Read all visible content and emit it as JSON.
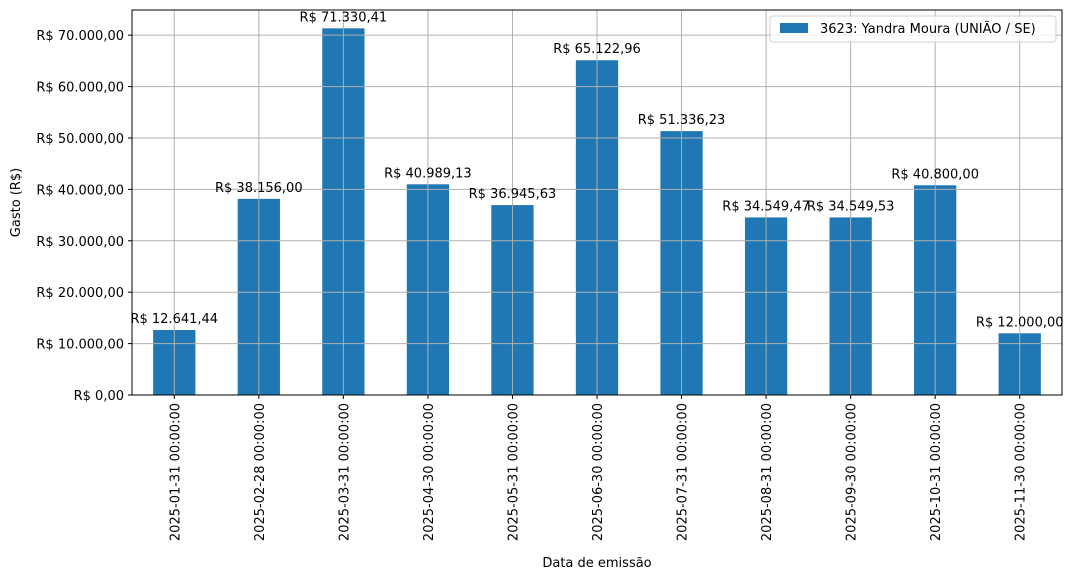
{
  "chart_data": {
    "type": "bar",
    "title": "",
    "xlabel": "Data de emissão",
    "ylabel": "Gasto (R$)",
    "ylim": [
      0,
      74896
    ],
    "grid": true,
    "legend_position": "upper right",
    "bar_color": "#1f77b4",
    "grid_color": "#b0b0b0",
    "categories": [
      "2025-01-31 00:00:00",
      "2025-02-28 00:00:00",
      "2025-03-31 00:00:00",
      "2025-04-30 00:00:00",
      "2025-05-31 00:00:00",
      "2025-06-30 00:00:00",
      "2025-07-31 00:00:00",
      "2025-08-31 00:00:00",
      "2025-09-30 00:00:00",
      "2025-10-31 00:00:00",
      "2025-11-30 00:00:00"
    ],
    "series": [
      {
        "name": "3623: Yandra Moura (UNIÃO / SE)",
        "values": [
          12641.44,
          38156.0,
          71330.41,
          40989.13,
          36945.63,
          65122.96,
          51336.23,
          34549.47,
          34549.53,
          40800.0,
          12000.0
        ],
        "labels": [
          "R$ 12.641,44",
          "R$ 38.156,00",
          "R$ 71.330,41",
          "R$ 40.989,13",
          "R$ 36.945,63",
          "R$ 65.122,96",
          "R$ 51.336,23",
          "R$ 34.549,47",
          "R$ 34.549,53",
          "R$ 40.800,00",
          "R$ 12.000,00"
        ]
      }
    ],
    "yticks": [
      {
        "value": 0,
        "label": "R$ 0,00"
      },
      {
        "value": 10000,
        "label": "R$ 10.000,00"
      },
      {
        "value": 20000,
        "label": "R$ 20.000,00"
      },
      {
        "value": 30000,
        "label": "R$ 30.000,00"
      },
      {
        "value": 40000,
        "label": "R$ 40.000,00"
      },
      {
        "value": 50000,
        "label": "R$ 50.000,00"
      },
      {
        "value": 60000,
        "label": "R$ 60.000,00"
      },
      {
        "value": 70000,
        "label": "R$ 70.000,00"
      }
    ]
  }
}
